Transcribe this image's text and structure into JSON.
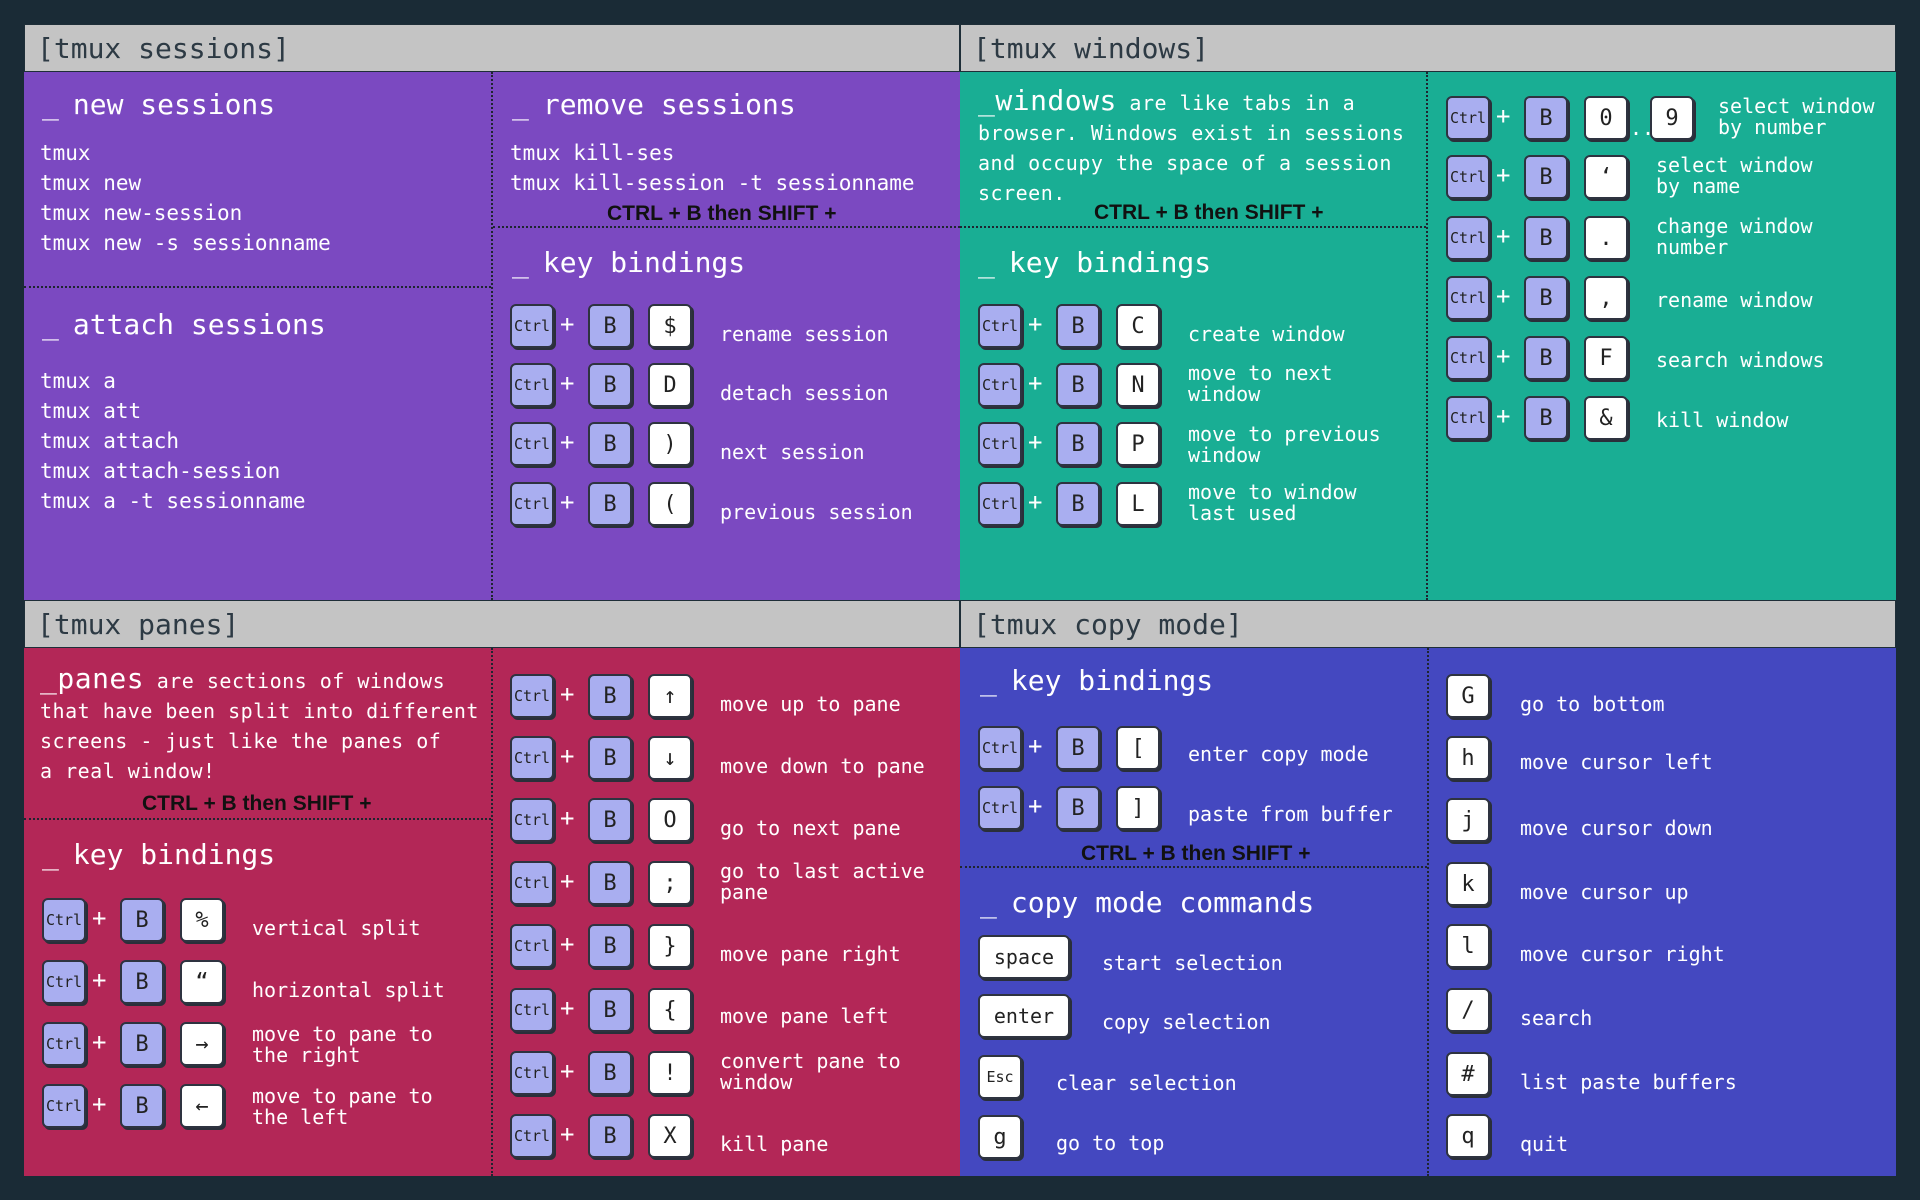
{
  "sessions": {
    "header": "[tmux sessions]",
    "new": {
      "title": "new sessions",
      "cmds": [
        "tmux",
        "tmux new",
        "tmux new-session",
        "tmux new -s sessionname"
      ]
    },
    "attach": {
      "title": "attach sessions",
      "cmds": [
        "tmux a",
        "tmux att",
        "tmux attach",
        "tmux attach-session",
        "tmux a -t sessionname"
      ]
    },
    "remove": {
      "title": "remove sessions",
      "cmds": [
        "tmux kill-ses",
        "tmux kill-session -t sessionname"
      ]
    },
    "shift_note": "CTRL + B then SHIFT +",
    "kb_title": "key bindings",
    "bindings": [
      {
        "key": "$",
        "desc": "rename session"
      },
      {
        "key": "D",
        "desc": "detach session"
      },
      {
        "key": ")",
        "desc": "next session"
      },
      {
        "key": "(",
        "desc": "previous session"
      }
    ]
  },
  "windows": {
    "header": "[tmux windows]",
    "intro_word": "windows",
    "intro_l1": " are like tabs in a",
    "intro_l2": "browser. Windows exist in sessions",
    "intro_l3": "and occupy the space of a session",
    "intro_l4": "screen.",
    "shift_note": "CTRL + B then SHIFT +",
    "kb_title": "key bindings",
    "bindings": [
      {
        "key": "C",
        "desc1": "create window",
        "desc2": ""
      },
      {
        "key": "N",
        "desc1": "move to next",
        "desc2": "window"
      },
      {
        "key": "P",
        "desc1": "move to previous",
        "desc2": "window"
      },
      {
        "key": "L",
        "desc1": "move to window",
        "desc2": "last used"
      }
    ],
    "right_bindings": [
      {
        "key": "0",
        "key2": "9",
        "desc1": "select window",
        "desc2": "by number"
      },
      {
        "key": "‘",
        "desc1": "select window",
        "desc2": "by name"
      },
      {
        "key": ".",
        "desc1": "change window",
        "desc2": "number"
      },
      {
        "key": ",",
        "desc1": "rename window",
        "desc2": ""
      },
      {
        "key": "F",
        "desc1": "search windows",
        "desc2": ""
      },
      {
        "key": "&",
        "desc1": "kill window",
        "desc2": ""
      }
    ],
    "range_dots": ".."
  },
  "panes": {
    "header": "[tmux panes]",
    "intro_word": "panes",
    "intro_l1": " are sections of windows",
    "intro_l2": "that have been split into different",
    "intro_l3": "screens - just like the panes of",
    "intro_l4": "a real window!",
    "shift_note": "CTRL + B then SHIFT +",
    "kb_title": "key bindings",
    "bindings": [
      {
        "key": "%",
        "desc1": "vertical split",
        "desc2": ""
      },
      {
        "key": "“",
        "desc1": "horizontal split",
        "desc2": ""
      },
      {
        "key": "→",
        "desc1": "move to pane to",
        "desc2": "the right"
      },
      {
        "key": "←",
        "desc1": "move to pane to",
        "desc2": "the left"
      }
    ],
    "right_bindings": [
      {
        "key": "↑",
        "desc1": "move up to pane",
        "desc2": ""
      },
      {
        "key": "↓",
        "desc1": "move down to pane",
        "desc2": ""
      },
      {
        "key": "O",
        "desc1": "go to next pane",
        "desc2": ""
      },
      {
        "key": ";",
        "desc1": "go to last active",
        "desc2": "pane"
      },
      {
        "key": "}",
        "desc1": "move pane right",
        "desc2": ""
      },
      {
        "key": "{",
        "desc1": "move pane left",
        "desc2": ""
      },
      {
        "key": "!",
        "desc1": "convert pane to",
        "desc2": "window"
      },
      {
        "key": "X",
        "desc1": "kill pane",
        "desc2": ""
      }
    ]
  },
  "copy": {
    "header": "[tmux copy mode]",
    "kb_title": "key bindings",
    "bindings": [
      {
        "key": "[",
        "desc": "enter copy mode"
      },
      {
        "key": "]",
        "desc": "paste from buffer"
      }
    ],
    "shift_note": "CTRL + B then SHIFT +",
    "cmd_title": "copy mode commands",
    "commands": [
      {
        "key": "space",
        "desc": "start selection"
      },
      {
        "key": "enter",
        "desc": "copy selection"
      },
      {
        "key": "Esc",
        "desc": "clear selection"
      },
      {
        "key": "g",
        "desc": "go to top"
      }
    ],
    "right_commands": [
      {
        "key": "G",
        "desc": "go to bottom"
      },
      {
        "key": "h",
        "desc": "move cursor left"
      },
      {
        "key": "j",
        "desc": "move cursor down"
      },
      {
        "key": "k",
        "desc": "move cursor up"
      },
      {
        "key": "l",
        "desc": "move cursor right"
      },
      {
        "key": "/",
        "desc": "search"
      },
      {
        "key": "#",
        "desc": "list paste buffers"
      },
      {
        "key": "q",
        "desc": "quit"
      }
    ]
  },
  "common": {
    "ctrl": "Ctrl",
    "b": "B",
    "plus": "+",
    "underscore": "_"
  },
  "colors": {
    "sessions": "#7b49c1",
    "windows": "#19ae94",
    "panes": "#b32757",
    "copy": "#4448c0",
    "header": "#c4c4c4"
  }
}
